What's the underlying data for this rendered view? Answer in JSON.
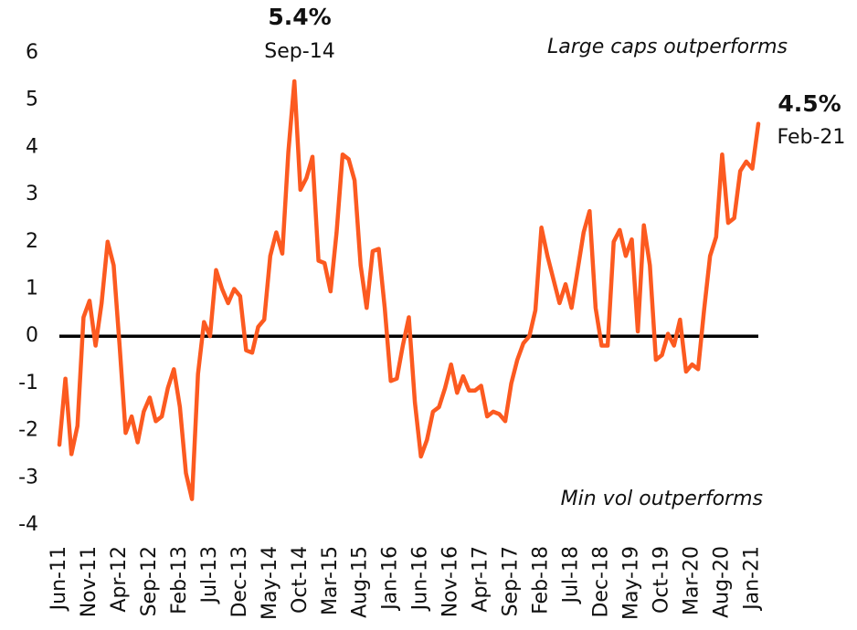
{
  "chart_data": {
    "type": "line",
    "categories": [
      "Jun-11",
      null,
      null,
      null,
      null,
      "Nov-11",
      null,
      null,
      null,
      null,
      "Apr-12",
      null,
      null,
      null,
      null,
      "Sep-12",
      null,
      null,
      null,
      null,
      "Feb-13",
      null,
      null,
      null,
      null,
      "Jul-13",
      null,
      null,
      null,
      null,
      "Dec-13",
      null,
      null,
      null,
      null,
      "May-14",
      null,
      null,
      null,
      null,
      "Oct-14",
      null,
      null,
      null,
      null,
      "Mar-15",
      null,
      null,
      null,
      null,
      "Aug-15",
      null,
      null,
      null,
      null,
      "Jan-16",
      null,
      null,
      null,
      null,
      "Jun-16",
      null,
      null,
      null,
      null,
      "Nov-16",
      null,
      null,
      null,
      null,
      "Apr-17",
      null,
      null,
      null,
      null,
      "Sep-17",
      null,
      null,
      null,
      null,
      "Feb-18",
      null,
      null,
      null,
      null,
      "Jul-18",
      null,
      null,
      null,
      null,
      "Dec-18",
      null,
      null,
      null,
      null,
      "May-19",
      null,
      null,
      null,
      null,
      "Oct-19",
      null,
      null,
      null,
      null,
      "Mar-20",
      null,
      null,
      null,
      null,
      "Aug-20",
      null,
      null,
      null,
      null,
      "Jan-21",
      null
    ],
    "series": [
      {
        "color": "#fc5a20",
        "values": [
          -2.3,
          -0.9,
          -2.5,
          -1.9,
          0.4,
          0.75,
          -0.2,
          0.7,
          2.0,
          1.5,
          -0.2,
          -2.05,
          -1.7,
          -2.25,
          -1.6,
          -1.3,
          -1.8,
          -1.7,
          -1.1,
          -0.7,
          -1.5,
          -2.9,
          -3.45,
          -0.8,
          0.3,
          0.0,
          1.4,
          1.0,
          0.7,
          1.0,
          0.85,
          -0.3,
          -0.35,
          0.2,
          0.35,
          1.7,
          2.2,
          1.75,
          3.9,
          5.4,
          3.1,
          3.35,
          3.8,
          1.6,
          1.55,
          0.95,
          2.2,
          3.85,
          3.75,
          3.3,
          1.5,
          0.6,
          1.8,
          1.85,
          0.6,
          -0.95,
          -0.9,
          -0.2,
          0.4,
          -1.4,
          -2.55,
          -2.2,
          -1.6,
          -1.5,
          -1.1,
          -0.6,
          -1.2,
          -0.85,
          -1.15,
          -1.15,
          -1.05,
          -1.7,
          -1.6,
          -1.65,
          -1.8,
          -1.0,
          -0.5,
          -0.15,
          0.0,
          0.55,
          2.3,
          1.7,
          1.2,
          0.7,
          1.1,
          0.6,
          1.4,
          2.2,
          2.65,
          0.6,
          -0.2,
          -0.2,
          2.0,
          2.25,
          1.7,
          2.05,
          0.1,
          2.35,
          1.5,
          -0.5,
          -0.4,
          0.05,
          -0.2,
          0.35,
          -0.75,
          -0.6,
          -0.7,
          0.55,
          1.7,
          2.1,
          3.85,
          2.4,
          2.5,
          3.5,
          3.7,
          3.55,
          4.5
        ]
      }
    ],
    "ylim": [
      -4,
      6
    ],
    "yticks": [
      -4,
      -3,
      -2,
      -1,
      0,
      1,
      2,
      3,
      4,
      5,
      6
    ],
    "hline": 0,
    "annotations": {
      "peak_value": "5.4%",
      "peak_date": "Sep-14",
      "last_value": "4.5%",
      "last_date": "Feb-21",
      "top_note": "Large caps outperforms",
      "bottom_note": "Min vol outperforms"
    }
  }
}
